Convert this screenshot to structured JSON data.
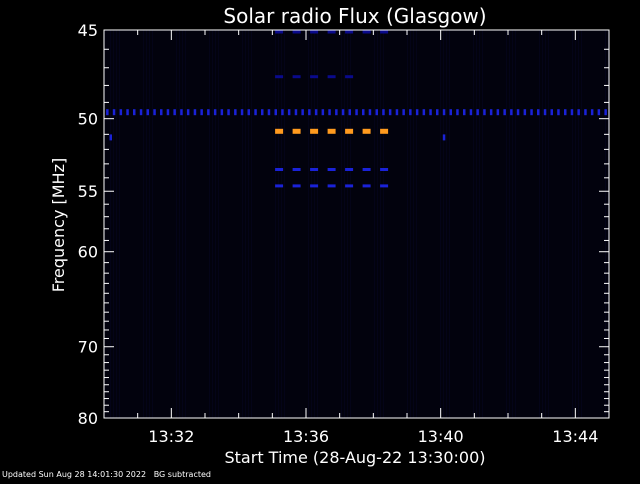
{
  "chart_data": {
    "type": "heatmap",
    "title": "Solar radio Flux (Glasgow)",
    "xlabel": "Start Time (28-Aug-22 13:30:00)",
    "ylabel": "Frequency [MHz]",
    "x_tick_labels": [
      "13:32",
      "13:36",
      "13:40",
      "13:44"
    ],
    "x_tick_minutes": [
      2,
      6,
      10,
      14
    ],
    "xlim_minutes": [
      0,
      15
    ],
    "y_tick_labels": [
      "45",
      "50",
      "55",
      "60",
      "70",
      "80"
    ],
    "y_tick_values": [
      45,
      50,
      55,
      60,
      70,
      80
    ],
    "ylim": [
      45,
      80
    ],
    "y_scale": "reciprocal",
    "background_color": "#02020d",
    "colors": {
      "text": "#ffffff",
      "axis": "#ffffff",
      "low": "#0a0a8c",
      "mid": "#1a22d8",
      "high": "#ff9a1e"
    },
    "features": [
      {
        "label": "steady narrowband emission",
        "freq_mhz": 49.6,
        "time_start_min": 0.1,
        "time_end_min": 15,
        "level": "mid",
        "step_min": 0.2
      },
      {
        "label": "brief feature",
        "freq_mhz": 51.2,
        "time_start_min": 0.2,
        "time_end_min": 0.3,
        "level": "mid",
        "step_min": 0.2
      },
      {
        "label": "brief feature",
        "freq_mhz": 51.2,
        "time_start_min": 10.1,
        "time_end_min": 10.2,
        "level": "mid",
        "step_min": 0.2
      },
      {
        "label": "strong pulsed emission",
        "freq_mhz": 50.8,
        "time_start_min": 5.2,
        "time_end_min": 8.4,
        "level": "high",
        "step_min": 0.52
      },
      {
        "label": "pulsed emission",
        "freq_mhz": 45.1,
        "time_start_min": 5.2,
        "time_end_min": 8.4,
        "level": "low",
        "step_min": 0.52
      },
      {
        "label": "pulsed emission",
        "freq_mhz": 47.5,
        "time_start_min": 5.2,
        "time_end_min": 7.6,
        "level": "low",
        "step_min": 0.52
      },
      {
        "label": "pulsed emission",
        "freq_mhz": 53.4,
        "time_start_min": 5.2,
        "time_end_min": 8.4,
        "level": "mid",
        "step_min": 0.52
      },
      {
        "label": "pulsed emission",
        "freq_mhz": 54.6,
        "time_start_min": 5.2,
        "time_end_min": 8.4,
        "level": "mid",
        "step_min": 0.52
      }
    ]
  },
  "footer": {
    "note": "Updated Sun Aug 28 14:01:30 2022   BG subtracted"
  }
}
